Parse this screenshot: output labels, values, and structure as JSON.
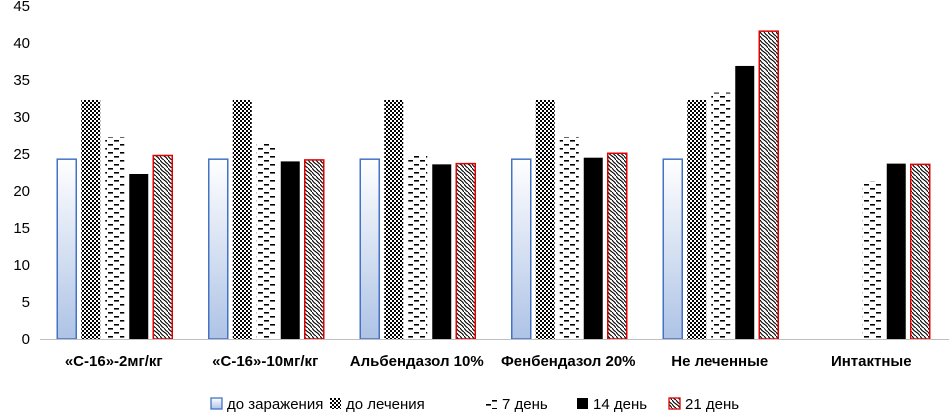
{
  "chart_data": {
    "type": "bar",
    "categories": [
      "«С-16»-2мг/кг",
      "«С-16»-10мг/кг",
      "Альбендазол 10%",
      "Фенбендазол 20%",
      "Не леченные",
      "Интактные"
    ],
    "series": [
      {
        "name": "до заражения",
        "values": [
          24.3,
          24.3,
          24.3,
          24.3,
          24.3,
          null
        ],
        "color": "#4472c4",
        "fill_style": "gradient-blue"
      },
      {
        "name": "до лечения",
        "values": [
          32.3,
          32.3,
          32.3,
          32.3,
          32.3,
          null
        ],
        "color": "#000000",
        "fill_style": "checker"
      },
      {
        "name": "7 день",
        "values": [
          27.3,
          26.5,
          24.8,
          27.3,
          33.3,
          21.3
        ],
        "color": "#000000",
        "fill_style": "dashes"
      },
      {
        "name": "14 день",
        "values": [
          22.3,
          24.0,
          23.6,
          24.5,
          36.9,
          23.7
        ],
        "color": "#000000",
        "fill_style": "solid"
      },
      {
        "name": "21 день",
        "values": [
          24.8,
          24.2,
          23.7,
          25.1,
          41.6,
          23.6
        ],
        "color": "#e00000",
        "fill_style": "wave"
      }
    ],
    "ylim": [
      0,
      45
    ],
    "yticks": [
      "0",
      "5",
      "10",
      "15",
      "20",
      "25",
      "30",
      "35",
      "40",
      "45"
    ],
    "grid": false,
    "legend": "bottom",
    "title": "",
    "xlabel": "",
    "ylabel": ""
  }
}
